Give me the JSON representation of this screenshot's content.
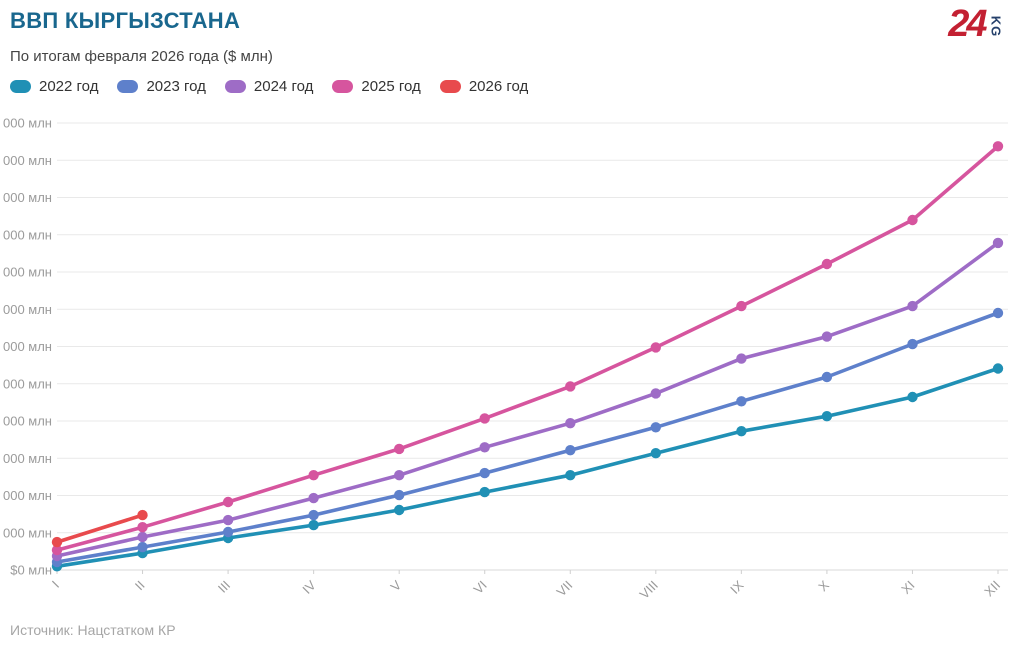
{
  "header": {
    "title": "ВВП КЫРГЫЗСТАНА",
    "subtitle": "По итогам февраля 2026 года ($ млн)"
  },
  "logo": {
    "number": "24",
    "suffix": "KG"
  },
  "footer": {
    "source": "Источник: Нацстатком КР"
  },
  "colors": {
    "title": "#19678e",
    "subtitle": "#444444",
    "legend_text": "#333333",
    "axis_label": "#9b9b9b",
    "gridline": "#e9e9e9",
    "zero_gridline": "#d9d9d9",
    "tick": "#cfcfcf",
    "source_text": "#a6a6a6",
    "logo_red": "#c32032",
    "logo_navy": "#25406b",
    "background": "#ffffff"
  },
  "chart_data": {
    "type": "line",
    "title": "ВВП КЫРГЫЗСТАНА",
    "subtitle": "По итогам февраля 2026 года ($ млн)",
    "xlabel": "",
    "ylabel": "$ млн",
    "legend_position": "top",
    "grid": "horizontal",
    "x_categories": [
      "I",
      "II",
      "III",
      "IV",
      "V",
      "VI",
      "VII",
      "VIII",
      "IX",
      "X",
      "XI",
      "XII"
    ],
    "y_axis": {
      "min": 0,
      "max": 24000,
      "step": 2000,
      "tick_label_display": "000 млн",
      "zero_tick_label": "$0 млн"
    },
    "series": [
      {
        "name": "2022 год",
        "color": "#2090b5",
        "values": [
          200,
          910,
          1720,
          2410,
          3220,
          4180,
          5090,
          6270,
          7450,
          8260,
          9290,
          10820
        ]
      },
      {
        "name": "2023 год",
        "color": "#5e80cb",
        "values": [
          430,
          1230,
          2040,
          2950,
          4020,
          5200,
          6430,
          7660,
          9060,
          10360,
          12130,
          13800
        ]
      },
      {
        "name": "2024 год",
        "color": "#9e6cc6",
        "values": [
          750,
          1770,
          2680,
          3860,
          5090,
          6590,
          7880,
          9480,
          11350,
          12530,
          14170,
          17560
        ]
      },
      {
        "name": "2025 год",
        "color": "#d6559e",
        "values": [
          1070,
          2300,
          3650,
          5090,
          6500,
          8140,
          9860,
          11950,
          14170,
          16430,
          18790,
          22750
        ]
      },
      {
        "name": "2026 год",
        "color": "#e84a4d",
        "values": [
          1500,
          2950
        ]
      }
    ]
  }
}
